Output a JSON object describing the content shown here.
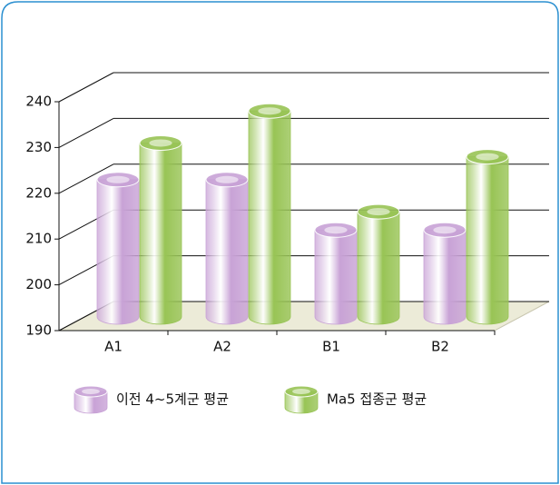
{
  "chart_data": {
    "type": "bar",
    "categories": [
      "A1",
      "A2",
      "B1",
      "B2"
    ],
    "series": [
      {
        "name": "이전 4~5계군 평균",
        "color": "#c8a2d6",
        "values": [
          220,
          220,
          209,
          209
        ]
      },
      {
        "name": "Ma5 접종군 평균",
        "color": "#98c455",
        "values": [
          228,
          235,
          213,
          225
        ]
      }
    ],
    "ylim": [
      190,
      240
    ],
    "yticks": [
      190,
      200,
      210,
      220,
      230,
      240
    ],
    "grid": true
  }
}
